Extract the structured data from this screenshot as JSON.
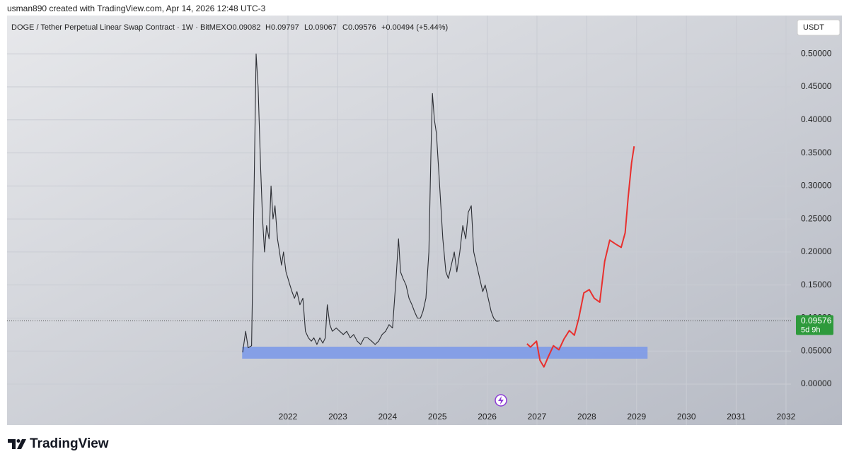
{
  "header": {
    "attribution": "usman890 created with TradingView.com, Apr 14, 2026 12:48 UTC-3",
    "symbol": "DOGE / Tether Perpetual Linear Swap Contract · 1W · BitMEX",
    "open": "O0.09082",
    "high": "H0.09797",
    "low": "L0.09067",
    "close": "C0.09576",
    "change": "+0.00494 (+5.44%)",
    "currency": "USDT"
  },
  "chart_data": {
    "type": "line",
    "xlim": [
      2016.36,
      2032.1
    ],
    "xticks": [
      2022,
      2023,
      2024,
      2025,
      2026,
      2027,
      2028,
      2029,
      2030,
      2031,
      2032
    ],
    "ylim": [
      -0.062,
      0.558
    ],
    "yticks": [
      {
        "value": 0,
        "label": "0.00000"
      },
      {
        "value": 0.05,
        "label": "0.05000"
      },
      {
        "value": 0.1,
        "label": "0.10000"
      },
      {
        "value": 0.15,
        "label": "0.15000"
      },
      {
        "value": 0.2,
        "label": "0.20000"
      },
      {
        "value": 0.25,
        "label": "0.25000"
      },
      {
        "value": 0.3,
        "label": "0.30000"
      },
      {
        "value": 0.35,
        "label": "0.35000"
      },
      {
        "value": 0.4,
        "label": "0.40000"
      },
      {
        "value": 0.45,
        "label": "0.45000"
      },
      {
        "value": 0.5,
        "label": "0.50000"
      }
    ],
    "grid": true,
    "series": [
      {
        "color": "#2b2d33",
        "x": [
          2021.09,
          2021.15,
          2021.2,
          2021.27,
          2021.32,
          2021.36,
          2021.4,
          2021.45,
          2021.49,
          2021.53,
          2021.57,
          2021.62,
          2021.66,
          2021.7,
          2021.74,
          2021.79,
          2021.83,
          2021.87,
          2021.91,
          2021.96,
          2022.0,
          2022.04,
          2022.08,
          2022.13,
          2022.18,
          2022.24,
          2022.3,
          2022.35,
          2022.41,
          2022.47,
          2022.52,
          2022.58,
          2022.64,
          2022.7,
          2022.75,
          2022.79,
          2022.84,
          2022.89,
          2022.97,
          2023.04,
          2023.11,
          2023.18,
          2023.25,
          2023.32,
          2023.39,
          2023.46,
          2023.53,
          2023.6,
          2023.68,
          2023.75,
          2023.82,
          2023.89,
          2023.96,
          2024.03,
          2024.1,
          2024.17,
          2024.22,
          2024.26,
          2024.31,
          2024.37,
          2024.43,
          2024.49,
          2024.54,
          2024.6,
          2024.66,
          2024.71,
          2024.77,
          2024.83,
          2024.87,
          2024.9,
          2024.94,
          2024.98,
          2025.03,
          2025.07,
          2025.11,
          2025.17,
          2025.22,
          2025.28,
          2025.34,
          2025.39,
          2025.45,
          2025.51,
          2025.57,
          2025.62,
          2025.68,
          2025.73,
          2025.79,
          2025.85,
          2025.91,
          2025.96,
          2026.02,
          2026.08,
          2026.13,
          2026.19,
          2026.25
        ],
        "values": [
          0.048,
          0.08,
          0.055,
          0.058,
          0.3,
          0.5,
          0.45,
          0.33,
          0.25,
          0.2,
          0.24,
          0.22,
          0.3,
          0.25,
          0.27,
          0.22,
          0.2,
          0.18,
          0.2,
          0.17,
          0.16,
          0.15,
          0.14,
          0.13,
          0.14,
          0.12,
          0.13,
          0.08,
          0.07,
          0.065,
          0.07,
          0.06,
          0.07,
          0.062,
          0.07,
          0.12,
          0.09,
          0.08,
          0.085,
          0.08,
          0.075,
          0.08,
          0.07,
          0.075,
          0.065,
          0.06,
          0.07,
          0.07,
          0.065,
          0.06,
          0.065,
          0.075,
          0.08,
          0.09,
          0.085,
          0.16,
          0.22,
          0.17,
          0.16,
          0.15,
          0.13,
          0.12,
          0.11,
          0.1,
          0.1,
          0.11,
          0.13,
          0.2,
          0.35,
          0.44,
          0.4,
          0.38,
          0.32,
          0.27,
          0.22,
          0.17,
          0.16,
          0.18,
          0.2,
          0.17,
          0.2,
          0.24,
          0.22,
          0.26,
          0.27,
          0.2,
          0.18,
          0.16,
          0.14,
          0.15,
          0.13,
          0.11,
          0.1,
          0.095,
          0.09576
        ]
      },
      {
        "color": "#e8302e",
        "x": [
          2026.8,
          2026.87,
          2026.99,
          2027.06,
          2027.14,
          2027.23,
          2027.33,
          2027.44,
          2027.54,
          2027.65,
          2027.75,
          2027.84,
          2027.94,
          2028.05,
          2028.15,
          2028.26,
          2028.36,
          2028.46,
          2028.58,
          2028.69,
          2028.77,
          2028.83,
          2028.9,
          2028.95
        ],
        "values": [
          0.061,
          0.056,
          0.065,
          0.036,
          0.026,
          0.042,
          0.058,
          0.052,
          0.068,
          0.081,
          0.074,
          0.1,
          0.138,
          0.143,
          0.13,
          0.124,
          0.186,
          0.218,
          0.212,
          0.207,
          0.229,
          0.282,
          0.335,
          0.36
        ]
      }
    ],
    "zone": {
      "color": "#7d9ae8",
      "x": [
        2021.08,
        2029.22
      ],
      "y": [
        0.0385,
        0.0566
      ]
    },
    "last_price": 0.09576,
    "last_price_color": "#2e9a3c",
    "countdown": "5d 9h"
  },
  "footer": {
    "logo": "TradingView"
  }
}
